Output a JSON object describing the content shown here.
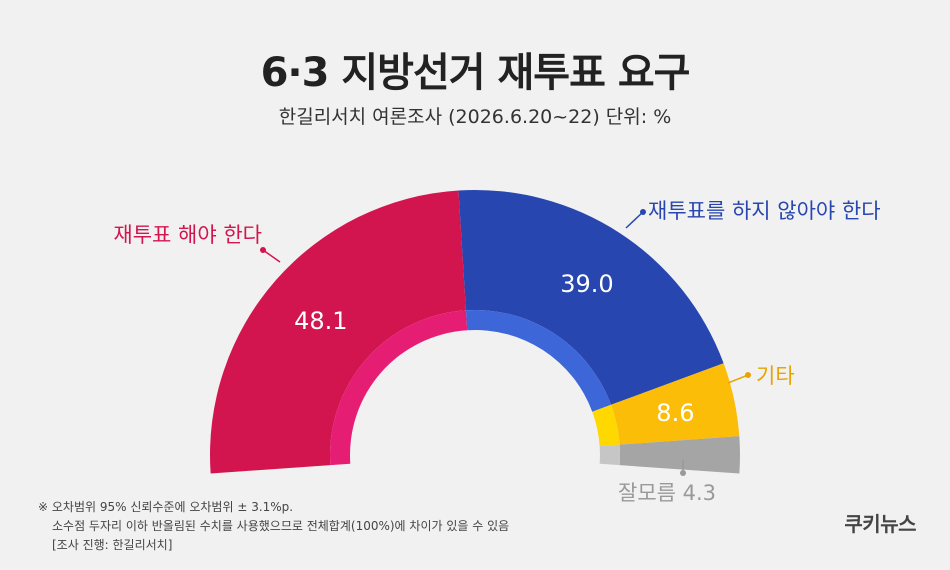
{
  "title": "6·3 지방선거 재투표 요구",
  "subtitle": "한길리서치 여론조사 (2026.6.20~22) 단위: %",
  "chart_data": {
    "type": "pie",
    "style": "semi-donut",
    "title": "6·3 지방선거 재투표 요구",
    "subtitle": "한길리서치 여론조사 (2026.6.20~22) 단위: %",
    "unit": "%",
    "slices": [
      {
        "label": "재투표 해야 한다",
        "value": 48.1,
        "value_label": "48.1",
        "color": "#d3154f",
        "inner_color": "#e51e74",
        "label_color": "#d3154f"
      },
      {
        "label": "재투표를 하지 않아야 한다",
        "value": 39.0,
        "value_label": "39.0",
        "color": "#2846b0",
        "inner_color": "#3d66d8",
        "label_color": "#2846b0"
      },
      {
        "label": "기타",
        "value": 8.6,
        "value_label": "8.6",
        "color": "#fbbd08",
        "inner_color": "#ffd800",
        "label_color": "#e8a400"
      },
      {
        "label": "잘모름",
        "value": 4.3,
        "value_label": "4.3",
        "color": "#a5a5a5",
        "inner_color": "#c6c6c6",
        "label_color": "#999999"
      }
    ]
  },
  "notes": [
    "※ 오차범위 95% 신뢰수준에 오차범위 ± 3.1%p.",
    "소수점 두자리 이하 반올림된 수치를 사용했으므로 전체합계(100%)에 차이가 있을 수 있음",
    "[조사 진행: 한길리서치]"
  ],
  "logo_text": "쿠키뉴스"
}
